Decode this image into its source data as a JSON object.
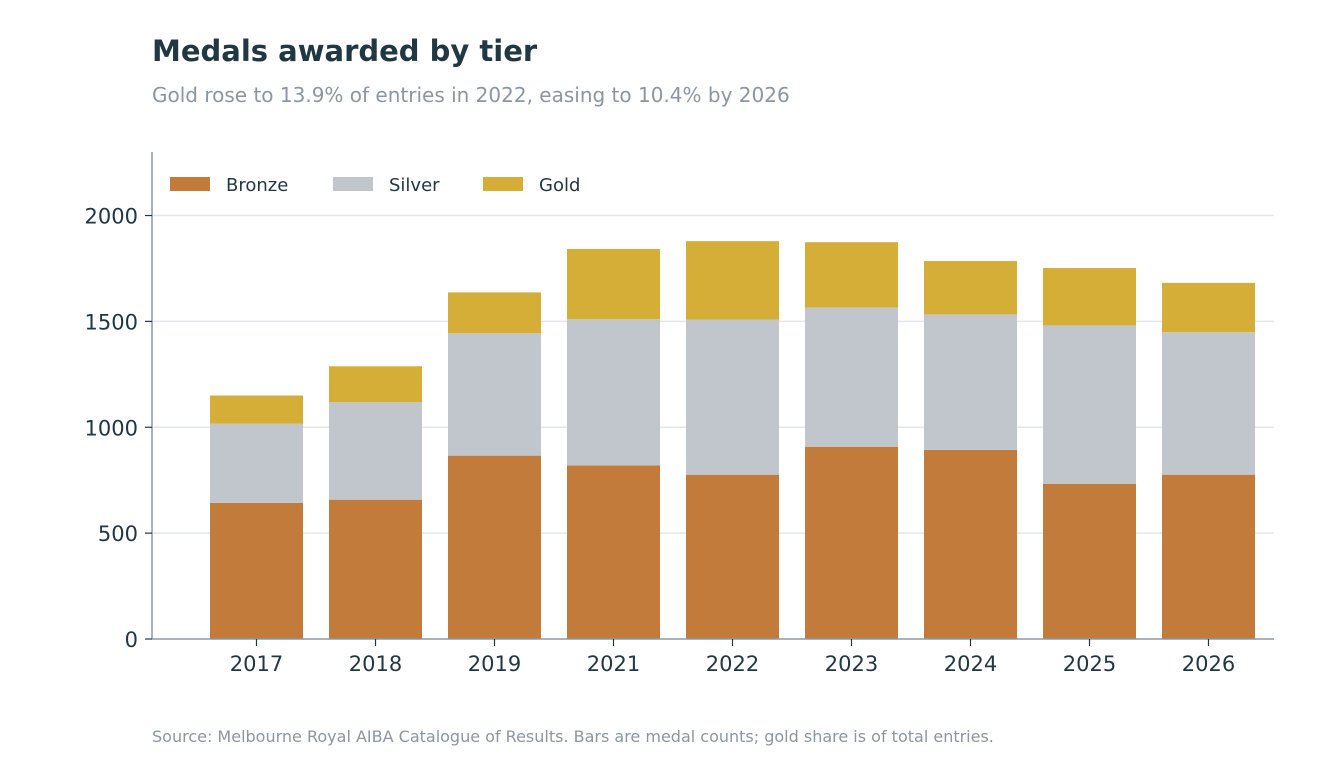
{
  "header": {
    "title": "Medals awarded by tier",
    "subtitle": "Gold rose to 13.9% of entries in 2022, easing to 10.4% by 2026"
  },
  "footer": {
    "source": "Source: Melbourne Royal AIBA Catalogue of Results. Bars are medal counts; gold share is of total entries."
  },
  "chart_data": {
    "type": "bar",
    "stacked": true,
    "title": "Medals awarded by tier",
    "subtitle": "Gold rose to 13.9% of entries in 2022, easing to 10.4% by 2026",
    "xlabel": "",
    "ylabel": "",
    "categories": [
      "2017",
      "2018",
      "2019",
      "2021",
      "2022",
      "2023",
      "2024",
      "2025",
      "2026"
    ],
    "series": [
      {
        "name": "Bronze",
        "color": "#c27b3a",
        "values": [
          643,
          658,
          866,
          820,
          776,
          908,
          893,
          733,
          776
        ]
      },
      {
        "name": "Silver",
        "color": "#c0c6cb",
        "values": [
          374,
          460,
          578,
          690,
          733,
          658,
          640,
          748,
          673
        ]
      },
      {
        "name": "Gold",
        "color": "#d4ae37",
        "values": [
          133,
          170,
          193,
          332,
          370,
          308,
          252,
          271,
          233
        ]
      }
    ],
    "ylim": [
      0,
      2300
    ],
    "yticks": [
      0,
      500,
      1000,
      1500,
      2000
    ],
    "grid": "horizontal",
    "legend_position": "top-left"
  }
}
